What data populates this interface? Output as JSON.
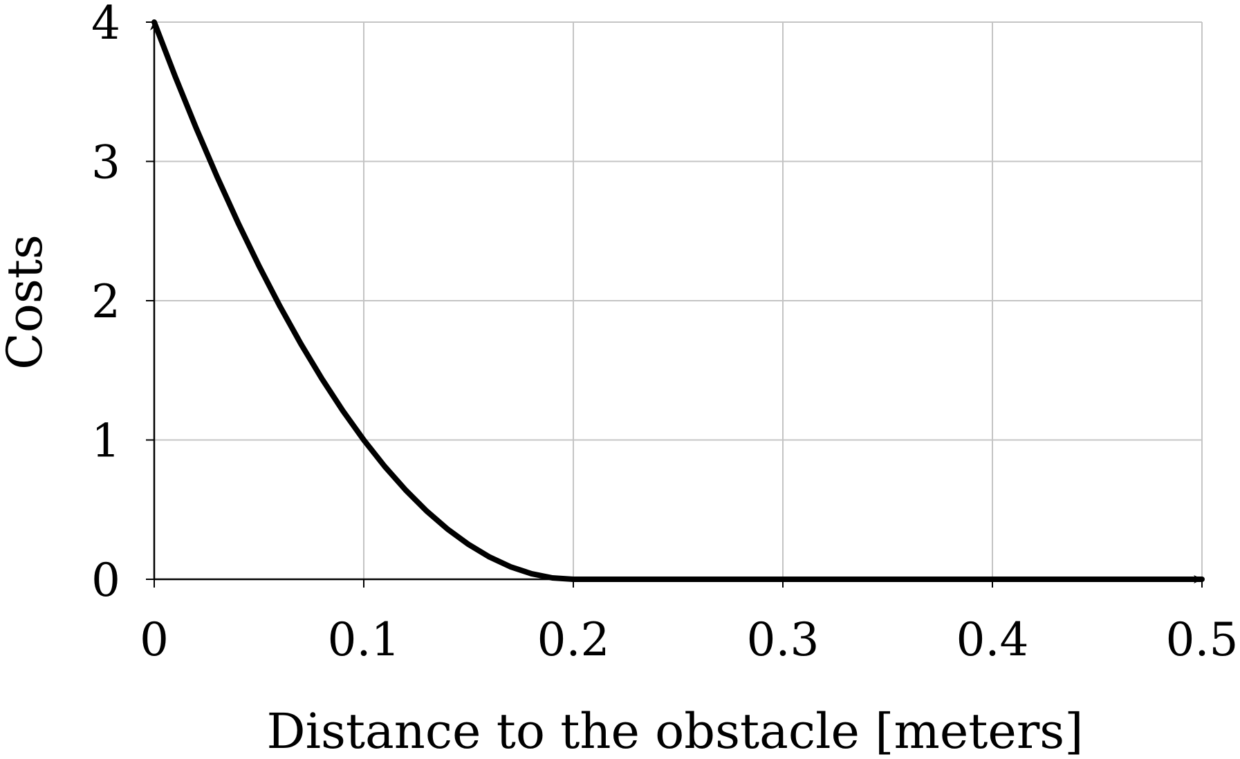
{
  "chart_data": {
    "type": "line",
    "title": "",
    "xlabel": "Distance to the obstacle [meters]",
    "ylabel": "Costs",
    "xlim": [
      0,
      0.5
    ],
    "ylim": [
      0,
      4
    ],
    "xticks": [
      0,
      0.1,
      0.2,
      0.3,
      0.4,
      0.5
    ],
    "xtick_labels": [
      "0",
      "0.1",
      "0.2",
      "0.3",
      "0.4",
      "0.5"
    ],
    "yticks": [
      0,
      1,
      2,
      3,
      4
    ],
    "ytick_labels": [
      "0",
      "1",
      "2",
      "3",
      "4"
    ],
    "grid": true,
    "legend": "none",
    "line_color": "#000000",
    "series": [
      {
        "x": [
          0,
          0.01,
          0.02,
          0.03,
          0.04,
          0.05,
          0.06,
          0.07,
          0.08,
          0.09,
          0.1,
          0.11,
          0.12,
          0.13,
          0.14,
          0.15,
          0.16,
          0.17,
          0.18,
          0.19,
          0.2,
          0.25,
          0.3,
          0.35,
          0.4,
          0.45,
          0.5
        ],
        "y": [
          4.0,
          3.61,
          3.24,
          2.89,
          2.56,
          2.25,
          1.96,
          1.69,
          1.44,
          1.21,
          1.0,
          0.81,
          0.64,
          0.49,
          0.36,
          0.25,
          0.16,
          0.09,
          0.04,
          0.01,
          0.0,
          0.0,
          0.0,
          0.0,
          0.0,
          0.0,
          0.0
        ]
      }
    ]
  }
}
